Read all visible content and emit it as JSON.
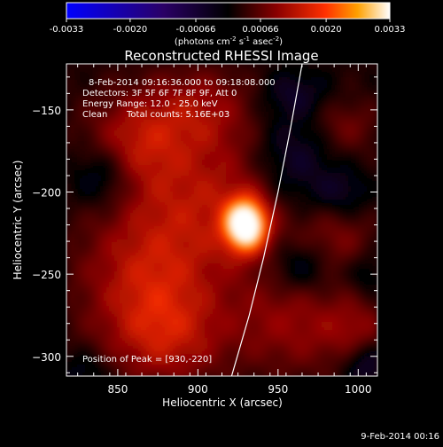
{
  "colorbar": {
    "ticks": [
      "-0.0033",
      "-0.0020",
      "-0.00066",
      "0.00066",
      "0.0020",
      "0.0033"
    ],
    "tick_values": [
      -0.0033,
      -0.002,
      -0.00066,
      0.00066,
      0.002,
      0.0033
    ],
    "range": [
      -0.0033,
      0.0033
    ],
    "unit_prefix": "(photons cm",
    "unit_exp1": "-2",
    "unit_mid": " s",
    "unit_exp2": "-1",
    "unit_mid2": " asec",
    "unit_exp3": "-2",
    "unit_suffix": ")",
    "colormap": [
      "#0000ff",
      "#000000",
      "#ff0000",
      "#ffff00",
      "#ffffff"
    ]
  },
  "chart_data": {
    "type": "heatmap",
    "title": "Reconstructed RHESSI Image",
    "xlabel": "Heliocentric X (arcsec)",
    "ylabel": "Heliocentric Y (arcsec)",
    "xlim": [
      818,
      1012
    ],
    "ylim": [
      -312,
      -122
    ],
    "x_ticks": [
      850,
      900,
      950,
      1000
    ],
    "x_tick_labels": [
      "850",
      "900",
      "950",
      "1000"
    ],
    "y_ticks": [
      -150,
      -200,
      -250,
      -300
    ],
    "y_tick_labels": [
      "−150",
      "−200",
      "−250",
      "−300"
    ],
    "peak": [
      930,
      -220
    ],
    "peak_value": 0.0033,
    "limb_curve": [
      [
        965,
        -122
      ],
      [
        958,
        -160
      ],
      [
        950,
        -200
      ],
      [
        941,
        -240
      ],
      [
        932,
        -275
      ],
      [
        921,
        -312
      ]
    ]
  },
  "annotations": {
    "line1": "8-Feb-2014 09:16:36.000 to 09:18:08.000",
    "line2": "Detectors: 3F 5F 6F 7F 8F 9F, Att 0",
    "line3": "Energy Range: 12.0 - 25.0 keV",
    "line4_a": "Clean",
    "line4_b": "Total counts: 5.16E+03",
    "peak_label": "Position of Peak = [930,-220]"
  },
  "footer": {
    "timestamp": "9-Feb-2014 00:16"
  }
}
